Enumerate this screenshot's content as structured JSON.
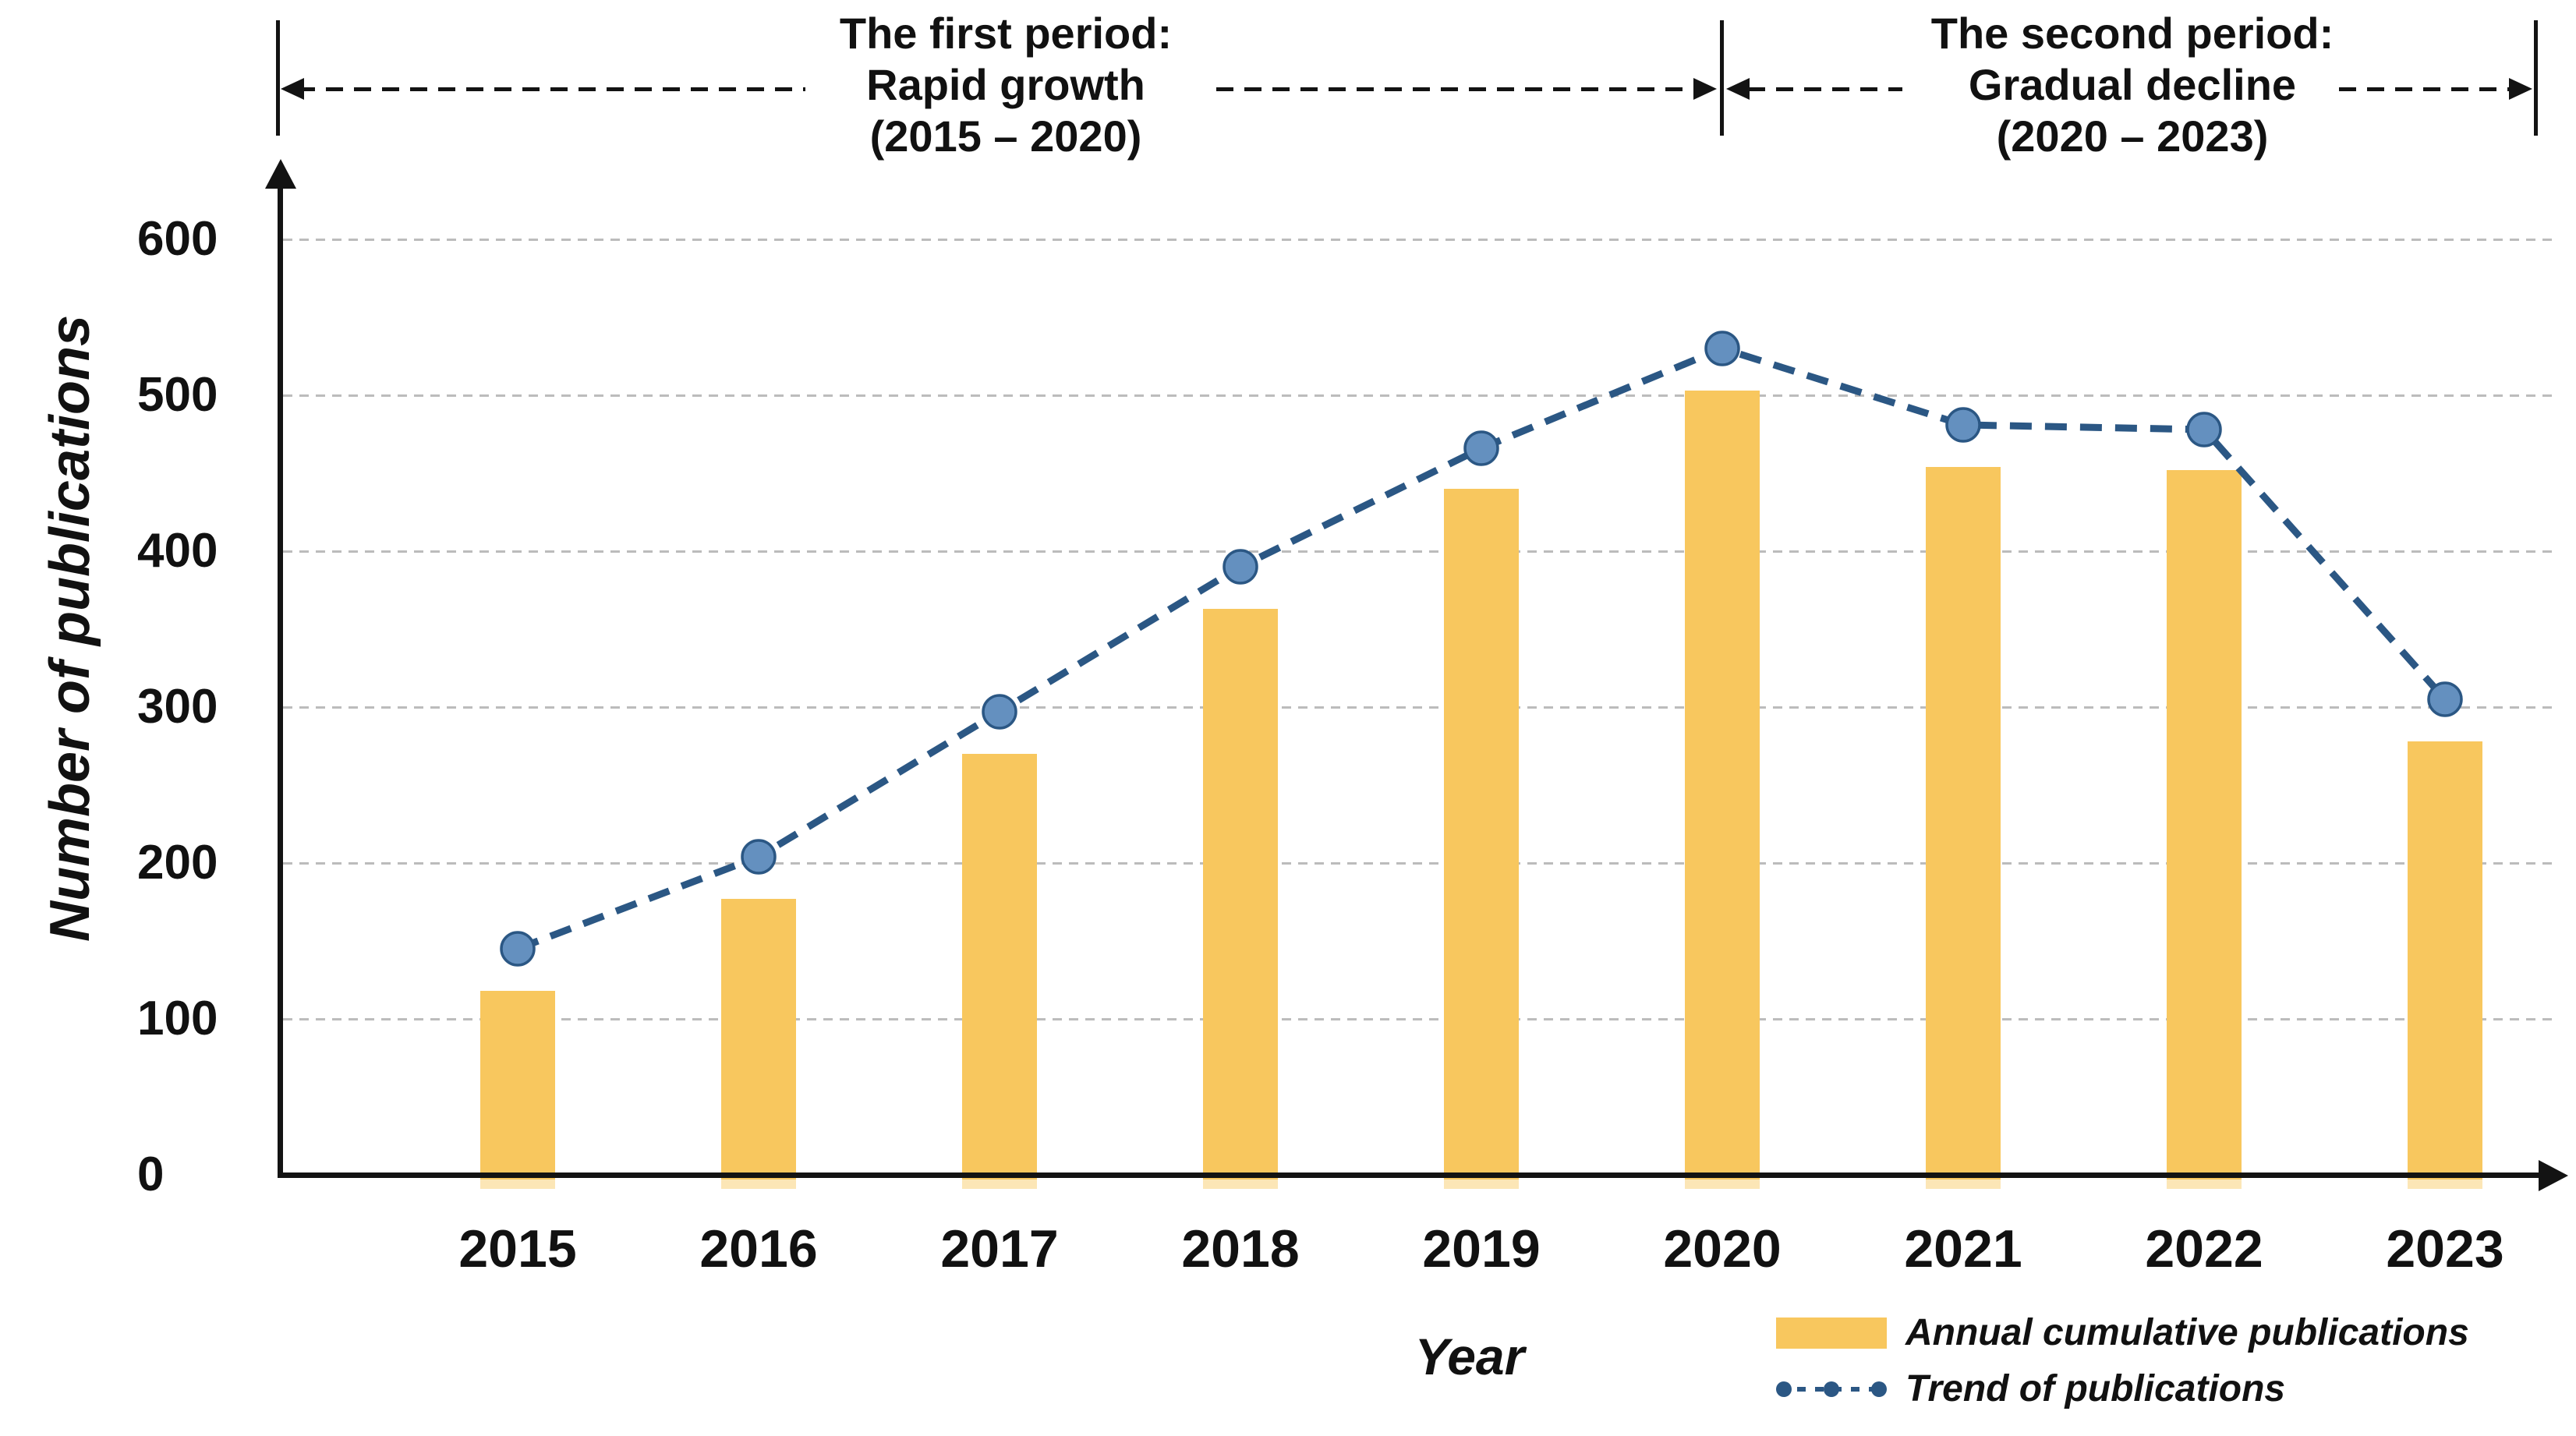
{
  "chart_data": {
    "type": "bar",
    "categories": [
      "2015",
      "2016",
      "2017",
      "2018",
      "2019",
      "2020",
      "2021",
      "2022",
      "2023"
    ],
    "series": [
      {
        "name": "Annual cumulative publications",
        "type": "bar",
        "color": "#F8C75E",
        "values": [
          118,
          177,
          270,
          363,
          440,
          503,
          454,
          452,
          278
        ]
      },
      {
        "name": "Trend of publications",
        "type": "line",
        "color": "#2B5784",
        "marker_color": "#6490BF",
        "values": [
          145,
          204,
          297,
          390,
          466,
          530,
          481,
          478,
          305
        ]
      }
    ],
    "xlabel": "Year",
    "ylabel": "Number of publications",
    "ylim": [
      0,
      620
    ],
    "yticks": [
      0,
      100,
      200,
      300,
      400,
      500,
      600
    ],
    "grid": true,
    "gridline_color": "#bcbcbc",
    "axis_color": "#131313",
    "legend_position": "bottom-right",
    "annotations": [
      {
        "lines": [
          "The first period:",
          "Rapid growth",
          "(2015 – 2020)"
        ]
      },
      {
        "lines": [
          "The second period:",
          "Gradual decline",
          "(2020 – 2023)"
        ]
      }
    ]
  }
}
